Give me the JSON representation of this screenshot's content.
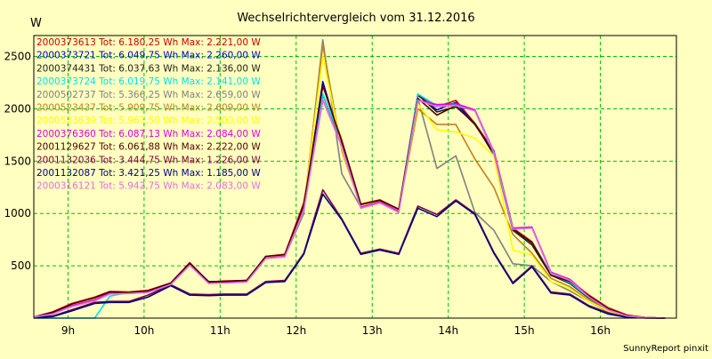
{
  "chart_data": {
    "type": "line",
    "title": "Wechselrichtervergleich vom 31.12.2016",
    "ylabel": "W",
    "xlabel": "",
    "footer": "SunnyReport pinxit",
    "xlim": [
      8.55,
      17.0
    ],
    "ylim": [
      0,
      2700
    ],
    "grid": true,
    "legend_position": "top-left",
    "x_ticks": [
      {
        "value": 9,
        "label": "9h"
      },
      {
        "value": 10,
        "label": "10h"
      },
      {
        "value": 11,
        "label": "11h"
      },
      {
        "value": 12,
        "label": "12h"
      },
      {
        "value": 13,
        "label": "13h"
      },
      {
        "value": 14,
        "label": "14h"
      },
      {
        "value": 15,
        "label": "15h"
      },
      {
        "value": 16,
        "label": "16h"
      }
    ],
    "y_ticks": [
      {
        "value": 500,
        "label": "500"
      },
      {
        "value": 1000,
        "label": "1000"
      },
      {
        "value": 1500,
        "label": "1500"
      },
      {
        "value": 2000,
        "label": "2000"
      },
      {
        "value": 2500,
        "label": "2500"
      }
    ],
    "x": [
      8.55,
      8.8,
      9.05,
      9.35,
      9.55,
      9.8,
      10.05,
      10.35,
      10.6,
      10.85,
      11.05,
      11.35,
      11.6,
      11.85,
      12.1,
      12.35,
      12.6,
      12.85,
      13.1,
      13.35,
      13.6,
      13.85,
      14.1,
      14.35,
      14.6,
      14.85,
      15.1,
      15.35,
      15.6,
      15.85,
      16.1,
      16.35,
      16.6,
      16.85
    ],
    "series": [
      {
        "name": "2000373613 Tot: 6.180,25 Wh Max: 2.221,00 W",
        "color": "#cc0000",
        "values": [
          10,
          60,
          140,
          200,
          255,
          250,
          265,
          335,
          530,
          345,
          355,
          360,
          590,
          610,
          1100,
          2221,
          1700,
          1090,
          1130,
          1040,
          2140,
          2020,
          2080,
          1860,
          1600,
          860,
          730,
          420,
          360,
          220,
          100,
          30,
          5,
          0
        ]
      },
      {
        "name": "2000373721 Tot: 6.049,75 Wh Max: 2.260,00 W",
        "color": "#0000cc",
        "values": [
          10,
          40,
          120,
          180,
          240,
          240,
          250,
          330,
          520,
          350,
          350,
          360,
          580,
          600,
          1050,
          2260,
          1650,
          1070,
          1120,
          1030,
          2130,
          1990,
          2060,
          1850,
          1580,
          850,
          720,
          420,
          340,
          200,
          80,
          20,
          5,
          0
        ]
      },
      {
        "name": "2000374431 Tot: 6.037,63 Wh Max: 2.136,00 W",
        "color": "#202020",
        "values": [
          10,
          50,
          130,
          190,
          250,
          245,
          255,
          330,
          525,
          340,
          345,
          355,
          585,
          600,
          1060,
          2136,
          1680,
          1080,
          1125,
          1030,
          2136,
          1970,
          2020,
          1860,
          1560,
          840,
          700,
          410,
          330,
          190,
          80,
          20,
          5,
          0
        ]
      },
      {
        "name": "2000373724 Tot: 6.019,75 Wh Max: 2.141,00 W",
        "color": "#00e0f0",
        "values": [
          0,
          0,
          0,
          0,
          210,
          245,
          255,
          330,
          520,
          340,
          345,
          355,
          580,
          590,
          1050,
          2141,
          1690,
          1080,
          1120,
          1030,
          2141,
          2030,
          2040,
          1990,
          1560,
          850,
          720,
          420,
          340,
          200,
          80,
          20,
          5,
          0
        ]
      },
      {
        "name": "2000502737 Tot: 5.366,25 Wh Max: 2.659,00 W",
        "color": "#808080",
        "values": [
          5,
          40,
          120,
          170,
          240,
          245,
          255,
          330,
          520,
          340,
          345,
          355,
          580,
          590,
          1000,
          2659,
          1380,
          1060,
          1110,
          1030,
          2100,
          1430,
          1550,
          1010,
          840,
          520,
          500,
          350,
          260,
          160,
          60,
          20,
          5,
          0
        ]
      },
      {
        "name": "2000523437 Tot: 5.909,75 Wh Max: 2.609,00 W",
        "color": "#c08020",
        "values": [
          5,
          45,
          125,
          180,
          245,
          245,
          255,
          330,
          520,
          340,
          345,
          355,
          585,
          595,
          1050,
          2609,
          1600,
          1070,
          1115,
          1035,
          2000,
          1850,
          1850,
          1520,
          1250,
          800,
          620,
          380,
          300,
          170,
          70,
          20,
          5,
          0
        ]
      },
      {
        "name": "2000523639 Tot: 5.967,50 Wh Max: 2.500,00 W",
        "color": "#ffff00",
        "values": [
          5,
          45,
          125,
          180,
          245,
          245,
          255,
          330,
          520,
          340,
          345,
          355,
          585,
          595,
          1060,
          2500,
          1620,
          1075,
          1120,
          1035,
          2050,
          1800,
          1780,
          1720,
          1550,
          650,
          600,
          350,
          280,
          160,
          70,
          20,
          5,
          0
        ]
      },
      {
        "name": "2000376360 Tot: 6.087,13 Wh Max: 2.084,00 W",
        "color": "#e000e0",
        "values": [
          10,
          45,
          120,
          175,
          240,
          240,
          250,
          325,
          510,
          335,
          340,
          350,
          575,
          590,
          1040,
          2084,
          1650,
          1060,
          1110,
          1020,
          2084,
          2040,
          2050,
          1990,
          1590,
          860,
          870,
          440,
          370,
          210,
          90,
          25,
          5,
          0
        ]
      },
      {
        "name": "2001129627 Tot: 6.061,88 Wh Max: 2.222,00 W",
        "color": "#500000",
        "values": [
          10,
          55,
          135,
          195,
          250,
          245,
          260,
          335,
          525,
          345,
          350,
          360,
          590,
          605,
          1080,
          2222,
          1690,
          1085,
          1125,
          1040,
          2100,
          1940,
          2030,
          1850,
          1580,
          850,
          720,
          410,
          350,
          210,
          90,
          25,
          5,
          0
        ]
      },
      {
        "name": "2001132036 Tot: 3.444,75 Wh Max: 1.226,00 W",
        "color": "#800040",
        "values": [
          5,
          20,
          80,
          150,
          160,
          160,
          220,
          320,
          230,
          225,
          230,
          230,
          350,
          360,
          620,
          1226,
          950,
          620,
          660,
          620,
          1070,
          990,
          1130,
          1000,
          630,
          340,
          500,
          250,
          230,
          120,
          50,
          10,
          2,
          0
        ]
      },
      {
        "name": "2001132087 Tot: 3.421,25 Wh Max: 1.185,00 W",
        "color": "#000080",
        "values": [
          5,
          15,
          70,
          140,
          150,
          150,
          200,
          310,
          220,
          215,
          220,
          220,
          340,
          350,
          610,
          1185,
          940,
          610,
          650,
          610,
          1050,
          970,
          1120,
          990,
          620,
          330,
          490,
          240,
          220,
          110,
          40,
          8,
          2,
          0
        ]
      },
      {
        "name": "2000316121 Tot: 5.942,75 Wh Max: 2.083,00 W",
        "color": "#e070e0",
        "values": [
          10,
          40,
          110,
          165,
          230,
          235,
          245,
          320,
          505,
          330,
          335,
          345,
          570,
          585,
          1030,
          2083,
          1640,
          1050,
          1100,
          1010,
          2083,
          2020,
          2030,
          1980,
          1580,
          850,
          860,
          430,
          360,
          200,
          80,
          20,
          5,
          0
        ]
      }
    ]
  }
}
